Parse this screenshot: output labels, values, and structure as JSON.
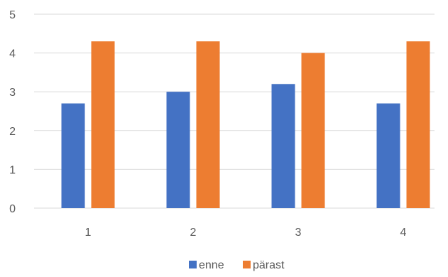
{
  "chart_data": {
    "type": "bar",
    "categories": [
      "1",
      "2",
      "3",
      "4"
    ],
    "series": [
      {
        "name": "enne",
        "values": [
          2.7,
          3.0,
          3.2,
          2.7
        ],
        "color": "#4472C4"
      },
      {
        "name": "pärast",
        "values": [
          4.3,
          4.3,
          4.0,
          4.3
        ],
        "color": "#ED7D31"
      }
    ],
    "title": "",
    "xlabel": "",
    "ylabel": "",
    "ylim": [
      0,
      5
    ],
    "yticks": [
      "0",
      "1",
      "2",
      "3",
      "4",
      "5"
    ],
    "grid": true,
    "legend_position": "bottom"
  }
}
